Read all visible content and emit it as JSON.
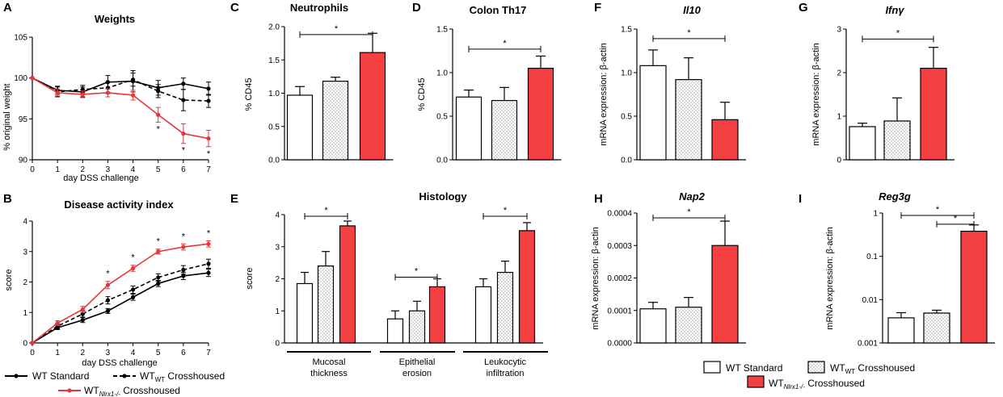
{
  "panel_letters": [
    "A",
    "B",
    "C",
    "D",
    "E",
    "F",
    "G",
    "H",
    "I"
  ],
  "colors": {
    "std": "#000000",
    "wt": "#000000",
    "ko": "#e8373a",
    "ko_fill": "#f44040"
  },
  "legend": {
    "std": "WT Standard",
    "wt_main": "WT",
    "wt_sub": "WT",
    "wt_tail": " Crosshoused",
    "ko_main": "WT",
    "ko_sub": "Nlrx1-/-",
    "ko_tail": " Crosshoused"
  },
  "chart_data": [
    {
      "id": "A",
      "type": "line",
      "title": "Weights",
      "xlabel": "day DSS challenge",
      "ylabel": "% original weight",
      "x": [
        0,
        1,
        2,
        3,
        4,
        5,
        6,
        7
      ],
      "xlim": [
        0,
        7
      ],
      "ylim": [
        90,
        105
      ],
      "yticks": [
        90,
        95,
        100,
        105
      ],
      "series": [
        {
          "name": "WT Standard",
          "style": "solid",
          "color": "#000000",
          "values": [
            100,
            98.5,
            98.3,
            99.5,
            99.6,
            98.8,
            99.3,
            98.7
          ],
          "errors": [
            0,
            0.5,
            0.6,
            0.8,
            1.3,
            0.9,
            0.7,
            0.8
          ]
        },
        {
          "name": "WT WT Crosshoused",
          "style": "dashed",
          "color": "#000000",
          "values": [
            100,
            98.3,
            98.6,
            98.8,
            99.8,
            98.4,
            97.3,
            97.2
          ],
          "errors": [
            0,
            0.6,
            0.5,
            0.7,
            0.8,
            0.8,
            1.3,
            0.8
          ]
        },
        {
          "name": "WT Nlrx1-/- Crosshoused",
          "style": "solid",
          "color": "#e8373a",
          "values": [
            100,
            98.2,
            98.0,
            98.2,
            97.9,
            95.5,
            93.2,
            92.6
          ],
          "errors": [
            0,
            0.4,
            0.4,
            0.5,
            0.6,
            0.9,
            1.2,
            1.0
          ]
        }
      ],
      "annotations": [
        {
          "x": 5,
          "label": "*",
          "color": "#000000"
        },
        {
          "x": 6,
          "label": "*",
          "color": "#000000"
        },
        {
          "x": 7,
          "label": "*",
          "color": "#1a3a8c"
        }
      ]
    },
    {
      "id": "B",
      "type": "line",
      "title": "Disease activity index",
      "xlabel": "day DSS challenge",
      "ylabel": "score",
      "x": [
        0,
        1,
        2,
        3,
        4,
        5,
        6,
        7
      ],
      "xlim": [
        0,
        7
      ],
      "ylim": [
        0,
        4
      ],
      "yticks": [
        0,
        1,
        2,
        3,
        4
      ],
      "series": [
        {
          "name": "WT Standard",
          "style": "solid",
          "color": "#000000",
          "values": [
            0,
            0.5,
            0.75,
            1.05,
            1.5,
            1.95,
            2.2,
            2.3
          ],
          "errors": [
            0,
            0.06,
            0.08,
            0.08,
            0.1,
            0.1,
            0.12,
            0.12
          ]
        },
        {
          "name": "WT WT Crosshoused",
          "style": "dashed",
          "color": "#000000",
          "values": [
            0,
            0.55,
            0.95,
            1.4,
            1.75,
            2.15,
            2.4,
            2.6
          ],
          "errors": [
            0,
            0.08,
            0.1,
            0.12,
            0.12,
            0.12,
            0.14,
            0.15
          ]
        },
        {
          "name": "WT Nlrx1-/- Crosshoused",
          "style": "solid",
          "color": "#e8373a",
          "values": [
            0,
            0.65,
            1.1,
            1.9,
            2.45,
            3.0,
            3.15,
            3.25
          ],
          "errors": [
            0,
            0.08,
            0.1,
            0.12,
            0.1,
            0.08,
            0.1,
            0.1
          ]
        }
      ],
      "annotations": [
        {
          "x": 3,
          "label": "*"
        },
        {
          "x": 4,
          "label": "*"
        },
        {
          "x": 5,
          "label": "*"
        },
        {
          "x": 6,
          "label": "*"
        },
        {
          "x": 7,
          "label": "*"
        }
      ]
    },
    {
      "id": "C",
      "type": "bar",
      "title": "Neutrophils",
      "ylabel": "% CD45",
      "ylim": [
        0,
        2.0
      ],
      "yticks": [
        0.0,
        0.5,
        1.0,
        1.5,
        2.0
      ],
      "tick_decimals": 1,
      "scale": "linear",
      "values": [
        0.97,
        1.18,
        1.61
      ],
      "errors": [
        0.13,
        0.06,
        0.29
      ],
      "signif": [
        {
          "from": 0,
          "to": 2,
          "y": 1.88,
          "label": "*"
        }
      ]
    },
    {
      "id": "D",
      "type": "bar",
      "title": "Colon Th17",
      "ylabel": "% CD45",
      "ylim": [
        0,
        1.5
      ],
      "yticks": [
        0.0,
        0.5,
        1.0,
        1.5
      ],
      "tick_decimals": 1,
      "scale": "linear",
      "values": [
        0.72,
        0.68,
        1.05
      ],
      "errors": [
        0.08,
        0.15,
        0.14
      ],
      "signif": [
        {
          "from": 0,
          "to": 2,
          "y": 1.27,
          "label": "*"
        }
      ]
    },
    {
      "id": "E",
      "type": "bar",
      "title": "Histology",
      "ylabel": "score",
      "ylim": [
        0,
        4
      ],
      "yticks": [
        0,
        1,
        2,
        3,
        4
      ],
      "tick_decimals": 0,
      "scale": "linear",
      "groups": [
        "Mucosal thickness",
        "Epithelial erosion",
        "Leukocytic infiltration"
      ],
      "group_lines": [
        [
          "Mucosal",
          "thickness"
        ],
        [
          "Epithelial",
          "erosion"
        ],
        [
          "Leukocytic",
          "infiltration"
        ]
      ],
      "series_values": [
        [
          1.85,
          2.4,
          3.65
        ],
        [
          0.75,
          1.0,
          1.75
        ],
        [
          1.75,
          2.2,
          3.5
        ]
      ],
      "series_errors": [
        [
          0.35,
          0.45,
          0.15
        ],
        [
          0.25,
          0.3,
          0.25
        ],
        [
          0.25,
          0.35,
          0.25
        ]
      ],
      "signif": [
        {
          "group": 0,
          "from": 0,
          "to": 2,
          "y": 3.95,
          "label": "*"
        },
        {
          "group": 1,
          "from": 0,
          "to": 2,
          "y": 2.05,
          "label": "*"
        },
        {
          "group": 2,
          "from": 0,
          "to": 2,
          "y": 3.95,
          "label": "*"
        }
      ]
    },
    {
      "id": "F",
      "type": "bar",
      "title": "Il10",
      "title_italic": true,
      "ylabel": "mRNA expression: β-actin",
      "ylim": [
        0,
        1.5
      ],
      "yticks": [
        0.0,
        0.5,
        1.0,
        1.5
      ],
      "tick_decimals": 1,
      "scale": "linear",
      "values": [
        1.08,
        0.92,
        0.46
      ],
      "errors": [
        0.18,
        0.25,
        0.2
      ],
      "signif": [
        {
          "from": 0,
          "to": 2,
          "y": 1.39,
          "label": "*"
        }
      ]
    },
    {
      "id": "G",
      "type": "bar",
      "title": "Ifnγ",
      "title_italic": true,
      "ylabel": "mRNA expression: β-actin",
      "ylim": [
        0,
        3
      ],
      "yticks": [
        0,
        1,
        2,
        3
      ],
      "tick_decimals": 0,
      "scale": "linear",
      "values": [
        0.76,
        0.89,
        2.1
      ],
      "errors": [
        0.08,
        0.53,
        0.48
      ],
      "signif": [
        {
          "from": 0,
          "to": 2,
          "y": 2.77,
          "label": "*"
        }
      ]
    },
    {
      "id": "H",
      "type": "bar",
      "title": "Nap2",
      "title_italic": true,
      "ylabel": "mRNA expression: β-actin",
      "ylim": [
        0,
        0.0004
      ],
      "yticks": [
        0.0,
        0.0001,
        0.0002,
        0.0003,
        0.0004
      ],
      "tick_decimals": 4,
      "scale": "linear",
      "values": [
        0.000105,
        0.00011,
        0.0003
      ],
      "errors": [
        2e-05,
        3e-05,
        7.5e-05
      ],
      "signif": [
        {
          "from": 0,
          "to": 2,
          "y": 0.000385,
          "label": "*"
        }
      ]
    },
    {
      "id": "I",
      "type": "bar",
      "title": "Reg3g",
      "title_italic": true,
      "ylabel": "mRNA expression: β-actin",
      "ylim": [
        0.001,
        1
      ],
      "yticks": [
        0.001,
        0.01,
        0.1,
        1
      ],
      "tick_labels": [
        "0.001",
        "0.01",
        "0.1",
        "1"
      ],
      "scale": "log",
      "values": [
        0.0038,
        0.0049,
        0.38
      ],
      "errors": [
        0.0012,
        0.0008,
        0.15
      ],
      "signif": [
        {
          "from": 0,
          "to": 2,
          "y": 0.88,
          "label": "*"
        },
        {
          "from": 1,
          "to": 2,
          "y": 0.55,
          "label": "*"
        }
      ]
    }
  ]
}
